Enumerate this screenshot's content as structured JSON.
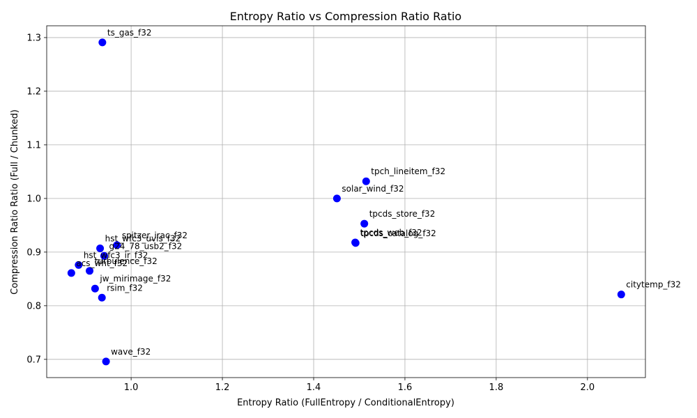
{
  "chart_data": {
    "type": "scatter",
    "title": "Entropy Ratio vs Compression Ratio Ratio",
    "xlabel": "Entropy Ratio (FullEntropy / ConditionalEntropy)",
    "ylabel": "Compression Ratio Ratio (Full / Chunked)",
    "xlim": [
      0.815,
      2.127
    ],
    "ylim": [
      0.666,
      1.322
    ],
    "x_ticks": [
      1.0,
      1.2,
      1.4,
      1.6,
      1.8,
      2.0
    ],
    "x_tick_labels": [
      "1.0",
      "1.2",
      "1.4",
      "1.6",
      "1.8",
      "2.0"
    ],
    "y_ticks": [
      0.7,
      0.8,
      0.9,
      1.0,
      1.1,
      1.2,
      1.3
    ],
    "y_tick_labels": [
      "0.7",
      "0.8",
      "0.9",
      "1.0",
      "1.1",
      "1.2",
      "1.3"
    ],
    "grid": true,
    "marker_color": "#0000ff",
    "points": [
      {
        "label": "ts_gas_f32",
        "x": 0.937,
        "y": 1.291
      },
      {
        "label": "tpch_lineitem_f32",
        "x": 1.515,
        "y": 1.032
      },
      {
        "label": "solar_wind_f32",
        "x": 1.451,
        "y": 1.0
      },
      {
        "label": "tpcds_store_f32",
        "x": 1.511,
        "y": 0.953
      },
      {
        "label": "tpcds_web_f32",
        "x": 1.491,
        "y": 0.918
      },
      {
        "label": "tpcds_catalog_f32",
        "x": 1.492,
        "y": 0.917
      },
      {
        "label": "spitzer_irac_f32",
        "x": 0.969,
        "y": 0.913
      },
      {
        "label": "hst_wfc3_uvis_f32",
        "x": 0.932,
        "y": 0.907
      },
      {
        "label": "g24_78_usb2_f32",
        "x": 0.941,
        "y": 0.893
      },
      {
        "label": "hst_wfc3_ir_f32",
        "x": 0.885,
        "y": 0.876
      },
      {
        "label": "turbulence_f32",
        "x": 0.909,
        "y": 0.865
      },
      {
        "label": "acs_wht_f32",
        "x": 0.869,
        "y": 0.861
      },
      {
        "label": "jw_mirimage_f32",
        "x": 0.921,
        "y": 0.832
      },
      {
        "label": "rsim_f32",
        "x": 0.936,
        "y": 0.815
      },
      {
        "label": "citytemp_f32",
        "x": 2.074,
        "y": 0.821
      },
      {
        "label": "wave_f32",
        "x": 0.945,
        "y": 0.696
      }
    ]
  }
}
